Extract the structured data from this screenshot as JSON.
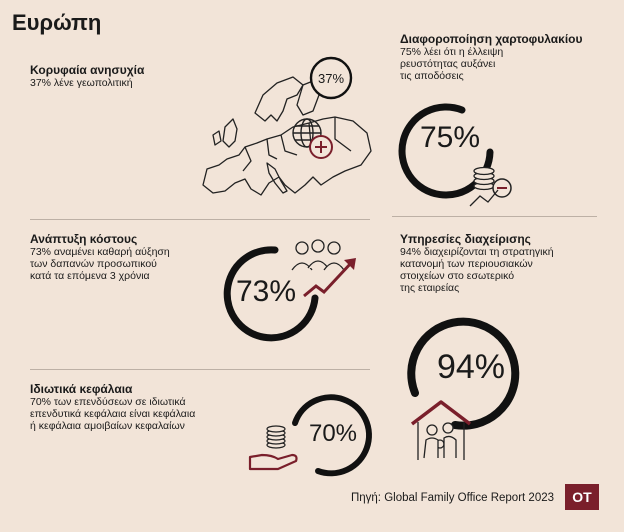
{
  "page": {
    "title": "Ευρώπη",
    "source": "Πηγή: Global Family Office Report 2023",
    "logo": "OT",
    "accent_color": "#7a1f2b",
    "ring_color": "#111111"
  },
  "sections": [
    {
      "heading": "Κορυφαία ανησυχία",
      "lines": [
        "37% λένε γεωπολιτική"
      ],
      "value_label": "37%",
      "icon": "europe-map-globe-icon"
    },
    {
      "heading": "Διαφοροποίηση χαρτοφυλακίου",
      "lines": [
        "75% λέει ότι η έλλειψη",
        "ρευστότητας αυξάνει",
        "τις αποδόσεις"
      ],
      "value_label": "75%",
      "icon": "coins-chart-icon"
    },
    {
      "heading": "Ανάπτυξη κόστους",
      "lines": [
        "73% αναμένει καθαρή αύξηση",
        "των δαπανών προσωπικού",
        "κατά τα επόμενα 3 χρόνια"
      ],
      "value_label": "73%",
      "icon": "people-rising-arrow-icon"
    },
    {
      "heading": "Υπηρεσίες διαχείρισης",
      "lines": [
        "94% διαχειρίζονται τη στρατηγική",
        "κατανομή των περιουσιακών",
        "στοιχείων στο εσωτερικό",
        "της εταιρείας"
      ],
      "value_label": "94%",
      "icon": "family-house-icon"
    },
    {
      "heading": "Ιδιωτικά κεφάλαια",
      "lines": [
        "70% των επενδύσεων σε ιδιωτικά",
        "επενδυτικά κεφάλαια είναι κεφάλαια",
        "ή κεφάλαια αμοιβαίων κεφαλαίων"
      ],
      "value_label": "70%",
      "icon": "hand-coins-icon"
    }
  ]
}
